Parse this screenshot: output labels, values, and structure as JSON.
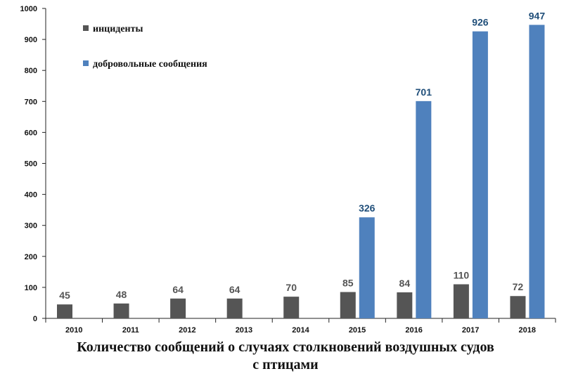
{
  "chart_data": {
    "type": "bar",
    "title": "Количество сообщений о случаях столкновений воздушных судов",
    "subtitle": "с птицами",
    "categories": [
      "2010",
      "2011",
      "2012",
      "2013",
      "2014",
      "2015",
      "2016",
      "2017",
      "2018"
    ],
    "series": [
      {
        "name": "инциденты",
        "color": "#555555",
        "values": [
          45,
          48,
          64,
          64,
          70,
          85,
          84,
          110,
          72
        ]
      },
      {
        "name": "добровольные сообщения",
        "color": "#4f81bd",
        "values": [
          null,
          null,
          null,
          null,
          null,
          326,
          701,
          926,
          947
        ]
      }
    ],
    "data_labels": {
      "incidents": [
        "45",
        "48",
        "64",
        "64",
        "70",
        "85",
        "84",
        "110",
        "72"
      ],
      "voluntary": [
        "",
        "",
        "",
        "",
        "",
        "326",
        "701",
        "926",
        "947"
      ]
    },
    "ylim": [
      0,
      1000
    ],
    "yticks": [
      "0",
      "100",
      "200",
      "300",
      "400",
      "500",
      "600",
      "700",
      "800",
      "900",
      "1000"
    ],
    "legend_position": "top-left",
    "grid": false
  }
}
